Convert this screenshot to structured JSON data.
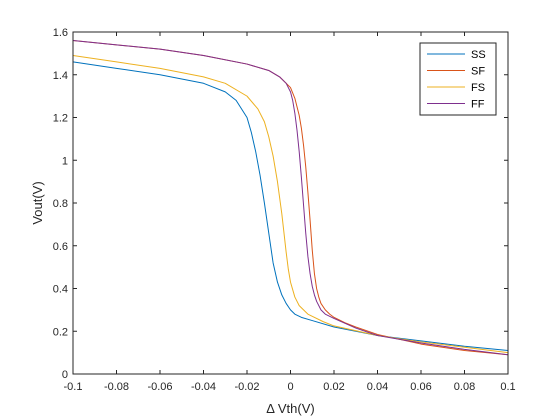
{
  "chart_data": {
    "type": "line",
    "title": "",
    "xlabel": "Δ Vth(V)",
    "ylabel": "Vout(V)",
    "xlim": [
      -0.1,
      0.1
    ],
    "ylim": [
      0,
      1.6
    ],
    "xticks": [
      -0.1,
      -0.08,
      -0.06,
      -0.04,
      -0.02,
      0,
      0.02,
      0.04,
      0.06,
      0.08,
      0.1
    ],
    "xtick_labels": [
      "-0.1",
      "-0.08",
      "-0.06",
      "-0.04",
      "-0.02",
      "0",
      "0.02",
      "0.04",
      "0.06",
      "0.08",
      "0.1"
    ],
    "yticks": [
      0,
      0.2,
      0.4,
      0.6,
      0.8,
      1,
      1.2,
      1.4,
      1.6
    ],
    "ytick_labels": [
      "0",
      "0.2",
      "0.4",
      "0.6",
      "0.8",
      "1",
      "1.2",
      "1.4",
      "1.6"
    ],
    "grid": false,
    "legend_position": "top-right",
    "series": [
      {
        "name": "SS",
        "color": "#0072BD",
        "x": [
          -0.1,
          -0.08,
          -0.06,
          -0.04,
          -0.03,
          -0.025,
          -0.02,
          -0.018,
          -0.016,
          -0.014,
          -0.012,
          -0.01,
          -0.008,
          -0.006,
          -0.004,
          -0.002,
          0,
          0.002,
          0.005,
          0.01,
          0.02,
          0.04,
          0.06,
          0.08,
          0.1
        ],
        "y": [
          1.46,
          1.43,
          1.4,
          1.36,
          1.32,
          1.28,
          1.2,
          1.13,
          1.04,
          0.93,
          0.8,
          0.66,
          0.52,
          0.43,
          0.37,
          0.33,
          0.3,
          0.28,
          0.265,
          0.25,
          0.22,
          0.18,
          0.155,
          0.13,
          0.11
        ]
      },
      {
        "name": "SF",
        "color": "#D95319",
        "x": [
          -0.1,
          -0.08,
          -0.06,
          -0.04,
          -0.02,
          -0.01,
          -0.005,
          0,
          0.002,
          0.004,
          0.005,
          0.006,
          0.007,
          0.008,
          0.009,
          0.01,
          0.011,
          0.012,
          0.013,
          0.014,
          0.016,
          0.018,
          0.02,
          0.025,
          0.03,
          0.04,
          0.06,
          0.08,
          0.1
        ],
        "y": [
          1.56,
          1.54,
          1.52,
          1.49,
          1.45,
          1.42,
          1.39,
          1.34,
          1.29,
          1.21,
          1.15,
          1.07,
          0.97,
          0.85,
          0.72,
          0.58,
          0.47,
          0.4,
          0.36,
          0.33,
          0.3,
          0.28,
          0.265,
          0.24,
          0.22,
          0.185,
          0.14,
          0.11,
          0.09
        ]
      },
      {
        "name": "FS",
        "color": "#EDB120",
        "x": [
          -0.1,
          -0.08,
          -0.06,
          -0.04,
          -0.03,
          -0.02,
          -0.015,
          -0.012,
          -0.01,
          -0.008,
          -0.006,
          -0.004,
          -0.003,
          -0.002,
          -0.001,
          0,
          0.002,
          0.004,
          0.006,
          0.008,
          0.01,
          0.015,
          0.02,
          0.04,
          0.06,
          0.08,
          0.1
        ],
        "y": [
          1.49,
          1.46,
          1.43,
          1.39,
          1.36,
          1.3,
          1.24,
          1.18,
          1.11,
          1.02,
          0.9,
          0.75,
          0.66,
          0.57,
          0.49,
          0.43,
          0.36,
          0.32,
          0.3,
          0.28,
          0.27,
          0.245,
          0.225,
          0.18,
          0.15,
          0.125,
          0.1
        ]
      },
      {
        "name": "FF",
        "color": "#7E2F8E",
        "x": [
          -0.1,
          -0.08,
          -0.06,
          -0.04,
          -0.02,
          -0.01,
          -0.005,
          -0.002,
          0,
          0.001,
          0.002,
          0.003,
          0.004,
          0.005,
          0.006,
          0.007,
          0.008,
          0.009,
          0.01,
          0.011,
          0.012,
          0.014,
          0.016,
          0.02,
          0.03,
          0.04,
          0.06,
          0.08,
          0.1
        ],
        "y": [
          1.56,
          1.54,
          1.52,
          1.49,
          1.45,
          1.42,
          1.39,
          1.36,
          1.32,
          1.28,
          1.22,
          1.14,
          1.04,
          0.92,
          0.79,
          0.66,
          0.55,
          0.47,
          0.41,
          0.37,
          0.34,
          0.3,
          0.28,
          0.26,
          0.215,
          0.18,
          0.145,
          0.115,
          0.09
        ]
      }
    ]
  }
}
